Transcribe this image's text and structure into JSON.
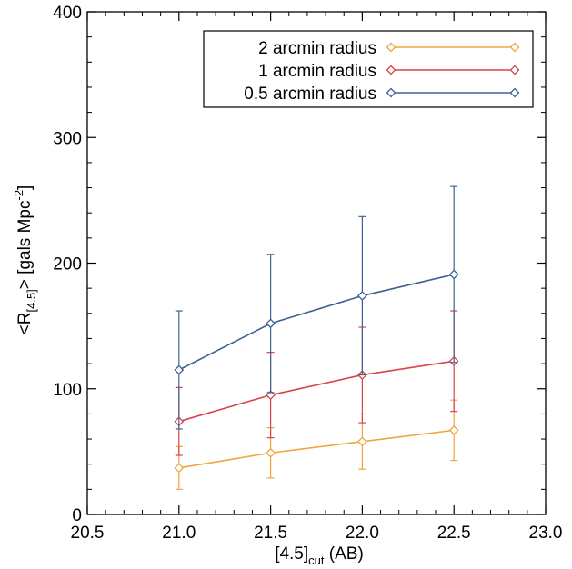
{
  "chart_data": {
    "type": "line",
    "xlabel": "[4.5]",
    "xlabel_sub": "cut",
    "xlabel_suffix": " (AB)",
    "ylabel_prefix": "<R",
    "ylabel_sub": "[4.5]",
    "ylabel_mid": ">  [gals Mpc",
    "ylabel_sup": "-2",
    "ylabel_suffix": "]",
    "xlim": [
      20.5,
      23.0
    ],
    "ylim": [
      0,
      400
    ],
    "xticks": [
      20.5,
      21.0,
      21.5,
      22.0,
      22.5,
      23.0
    ],
    "xtick_labels": [
      "20.5",
      "21.0",
      "21.5",
      "22.0",
      "22.5",
      "23.0"
    ],
    "yticks": [
      0,
      100,
      200,
      300,
      400
    ],
    "ytick_labels": [
      "0",
      "100",
      "200",
      "300",
      "400"
    ],
    "legend_position": "top-right",
    "grid": false,
    "series": [
      {
        "name": "2 arcmin radius",
        "color": "#F0A53C",
        "x": [
          21.0,
          21.5,
          22.0,
          22.5
        ],
        "y": [
          37,
          49,
          58,
          67
        ],
        "yerr": [
          17,
          20,
          22,
          24
        ]
      },
      {
        "name": "1 arcmin radius",
        "color": "#D9434C",
        "x": [
          21.0,
          21.5,
          22.0,
          22.5
        ],
        "y": [
          74,
          95,
          111,
          122
        ],
        "yerr": [
          27,
          34,
          38,
          40
        ]
      },
      {
        "name": "0.5 arcmin radius",
        "color": "#3D6393",
        "x": [
          21.0,
          21.5,
          22.0,
          22.5
        ],
        "y": [
          115,
          152,
          174,
          191
        ],
        "yerr": [
          47,
          55,
          63,
          70
        ]
      }
    ]
  }
}
